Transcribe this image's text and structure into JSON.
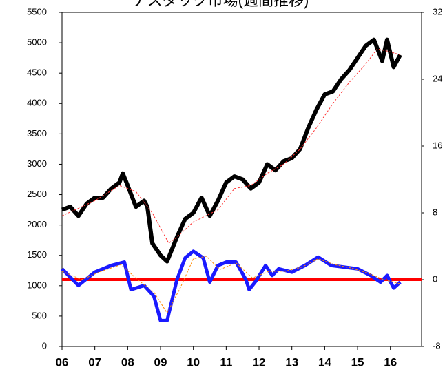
{
  "chart_data": {
    "type": "line",
    "title": "ナスダック市場(週間推移)",
    "xlim": [
      6,
      16.95
    ],
    "xticks": [
      {
        "value": 6,
        "label": "06"
      },
      {
        "value": 7,
        "label": "07"
      },
      {
        "value": 8,
        "label": "08"
      },
      {
        "value": 9,
        "label": "09"
      },
      {
        "value": 10,
        "label": "10"
      },
      11,
      12,
      13,
      14,
      15,
      16
    ],
    "ylim": [
      0,
      5500
    ],
    "yticks": [
      0,
      500,
      1000,
      1500,
      2000,
      2500,
      3000,
      3500,
      4000,
      4500,
      5000,
      5500
    ],
    "y2lim": [
      -8,
      32
    ],
    "y2ticks": [
      -8,
      0,
      8,
      16,
      24,
      32
    ],
    "hline": {
      "axis": "y2",
      "value": 0,
      "color": "#ff0000"
    },
    "series": [
      {
        "color": "#000000",
        "width": 6,
        "x": [
          6.0,
          6.25,
          6.5,
          6.75,
          7.0,
          7.25,
          7.5,
          7.75,
          7.85,
          8.0,
          8.25,
          8.5,
          8.6,
          8.75,
          9.0,
          9.2,
          9.5,
          9.75,
          10.0,
          10.25,
          10.5,
          10.75,
          11.0,
          11.25,
          11.5,
          11.75,
          12.0,
          12.25,
          12.5,
          12.75,
          13.0,
          13.25,
          13.5,
          13.75,
          14.0,
          14.25,
          14.5,
          14.75,
          15.0,
          15.25,
          15.5,
          15.75,
          15.9,
          16.1,
          16.3
        ],
        "values": [
          2250,
          2300,
          2150,
          2350,
          2450,
          2450,
          2600,
          2700,
          2850,
          2650,
          2300,
          2400,
          2300,
          1700,
          1500,
          1400,
          1800,
          2100,
          2200,
          2450,
          2150,
          2400,
          2700,
          2800,
          2750,
          2600,
          2700,
          3000,
          2900,
          3050,
          3100,
          3250,
          3600,
          3900,
          4150,
          4200,
          4400,
          4550,
          4750,
          4950,
          5050,
          4700,
          5050,
          4600,
          4800
        ]
      },
      {
        "color": "#ff3030",
        "width": 1,
        "dash": true,
        "x": [
          6,
          7,
          7.75,
          8.25,
          8.75,
          9.25,
          9.5,
          10,
          10.75,
          11.25,
          11.75,
          12.25,
          12.75,
          13.25,
          13.75,
          14.25,
          14.75,
          15.25,
          15.6,
          16,
          16.3
        ],
        "values": [
          2150,
          2400,
          2650,
          2550,
          2200,
          1700,
          1800,
          2050,
          2250,
          2600,
          2650,
          2850,
          3000,
          3250,
          3600,
          4000,
          4350,
          4650,
          4900,
          4850,
          4800
        ]
      },
      {
        "color": "#1a1aff",
        "width": 5,
        "axis": "y2",
        "x": [
          6.0,
          6.5,
          7.0,
          7.5,
          7.9,
          8.1,
          8.5,
          8.8,
          9.0,
          9.2,
          9.5,
          9.75,
          10.0,
          10.3,
          10.5,
          10.75,
          11.0,
          11.3,
          11.6,
          11.7,
          11.9,
          12.2,
          12.4,
          12.6,
          13.0,
          13.4,
          13.8,
          14.2,
          14.6,
          15.0,
          15.4,
          15.7,
          15.9,
          16.1,
          16.3
        ],
        "values": [
          1.3,
          -0.7,
          0.9,
          1.7,
          2.1,
          -1.2,
          -0.7,
          -2,
          -4.9,
          -4.9,
          0,
          2.6,
          3.4,
          2.6,
          -0.3,
          1.7,
          2.1,
          2.1,
          0,
          -1.2,
          -0.2,
          1.7,
          0.5,
          1.3,
          0.9,
          1.7,
          2.7,
          1.7,
          1.5,
          1.3,
          0.5,
          -0.3,
          0.5,
          -1,
          -0.3
        ]
      },
      {
        "color": "#ff8c00",
        "width": 1,
        "dash": true,
        "axis": "y2",
        "x": [
          6.0,
          6.6,
          7.2,
          7.8,
          8.3,
          8.8,
          9.2,
          9.6,
          10.0,
          10.4,
          10.8,
          11.3,
          11.8,
          12.3,
          12.8,
          13.3,
          13.8,
          14.3,
          14.8,
          15.3,
          15.8,
          16.3
        ],
        "values": [
          1.0,
          0,
          1.0,
          1.8,
          0,
          -1.5,
          -4.0,
          -1.0,
          2.5,
          2.8,
          1.2,
          2.0,
          0.2,
          1.0,
          1.0,
          1.5,
          2.5,
          1.8,
          1.4,
          0.8,
          0,
          -0.5
        ]
      }
    ]
  }
}
